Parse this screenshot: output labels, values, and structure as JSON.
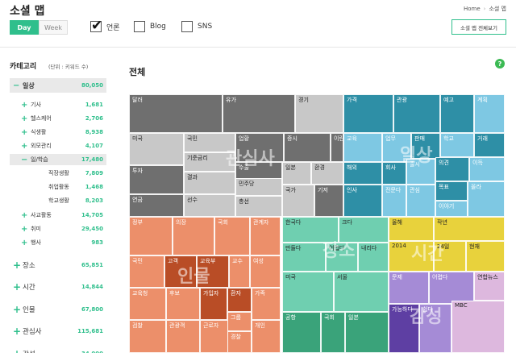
{
  "header": {
    "title": "소셜 맵",
    "breadcrumb": [
      "Home",
      "소셜 맵"
    ],
    "range_tabs": [
      "Day",
      "Week"
    ],
    "sources": [
      {
        "label": "언론",
        "checked": true
      },
      {
        "label": "Blog",
        "checked": false
      },
      {
        "label": "SNS",
        "checked": false
      }
    ],
    "view_all_label": "소셜 맵 전체보기"
  },
  "sidebar": {
    "title": "카테고리",
    "unit": "(단위 : 키워드 수)",
    "rows": [
      {
        "sign": "−",
        "label": "일상",
        "value": "80,050",
        "level": 1,
        "selected": true
      },
      {
        "sign": "+",
        "label": "기사",
        "value": "1,681",
        "level": 2
      },
      {
        "sign": "+",
        "label": "헬스케어",
        "value": "2,706",
        "level": 2
      },
      {
        "sign": "+",
        "label": "식생활",
        "value": "8,938",
        "level": 2
      },
      {
        "sign": "+",
        "label": "외모관리",
        "value": "4,107",
        "level": 2
      },
      {
        "sign": "−",
        "label": "일/학습",
        "value": "17,480",
        "level": 2,
        "selected": true
      },
      {
        "sign": "",
        "label": "직장생활",
        "value": "7,809",
        "level": 3
      },
      {
        "sign": "",
        "label": "취업활동",
        "value": "1,468",
        "level": 3
      },
      {
        "sign": "",
        "label": "학교생활",
        "value": "8,203",
        "level": 3
      },
      {
        "sign": "+",
        "label": "사교활동",
        "value": "14,705",
        "level": 2
      },
      {
        "sign": "+",
        "label": "취미",
        "value": "29,450",
        "level": 2
      },
      {
        "sign": "+",
        "label": "행사",
        "value": "983",
        "level": 2
      },
      {
        "sign": "+",
        "label": "장소",
        "value": "65,851",
        "level": 1
      },
      {
        "sign": "+",
        "label": "시간",
        "value": "14,844",
        "level": 1
      },
      {
        "sign": "+",
        "label": "인물",
        "value": "67,800",
        "level": 1
      },
      {
        "sign": "+",
        "label": "관심사",
        "value": "115,681",
        "level": 1
      },
      {
        "sign": "+",
        "label": "감성",
        "value": "34,000",
        "level": 1
      }
    ]
  },
  "main": {
    "title": "전체",
    "help_icon": "question-icon"
  },
  "treemap": {
    "group_labels": [
      "관심사",
      "일상",
      "인물",
      "장소",
      "시간",
      "감성"
    ],
    "palette": {
      "gray": "#6f6f6f",
      "silver": "#c8c8c8",
      "teal": "#2e8fa6",
      "sky": "#7ec8e3",
      "salmon": "#ec8f6a",
      "rust": "#b94d26",
      "mint": "#6fcfb0",
      "green": "#3aa37a",
      "yellow": "#e8d23c",
      "purple": "#a58bd6",
      "violet": "#5e3fa3",
      "pink": "#ddb8de"
    },
    "cells": [
      {
        "label": "달러",
        "c": "gray"
      },
      {
        "label": "유가",
        "c": "gray"
      },
      {
        "label": "경기",
        "c": "silver"
      },
      {
        "label": "미국",
        "c": "silver"
      },
      {
        "label": "국민",
        "c": "silver"
      },
      {
        "label": "기준금리",
        "c": "silver"
      },
      {
        "label": "업황",
        "c": "gray"
      },
      {
        "label": "증시",
        "c": "gray"
      },
      {
        "label": "이란",
        "c": "gray"
      },
      {
        "label": "투자",
        "c": "gray"
      },
      {
        "label": "결과",
        "c": "silver"
      },
      {
        "label": "수출",
        "c": "gray"
      },
      {
        "label": "일본",
        "c": "silver"
      },
      {
        "label": "환경",
        "c": "silver"
      },
      {
        "label": "민주당",
        "c": "silver"
      },
      {
        "label": "연금",
        "c": "gray"
      },
      {
        "label": "선수",
        "c": "silver"
      },
      {
        "label": "총선",
        "c": "silver"
      },
      {
        "label": "국가",
        "c": "silver"
      },
      {
        "label": "기저",
        "c": "gray"
      },
      {
        "label": "가격",
        "c": "teal"
      },
      {
        "label": "관광",
        "c": "teal"
      },
      {
        "label": "예고",
        "c": "teal"
      },
      {
        "label": "계획",
        "c": "sky"
      },
      {
        "label": "교육",
        "c": "sky"
      },
      {
        "label": "업무",
        "c": "sky"
      },
      {
        "label": "판매",
        "c": "teal"
      },
      {
        "label": "학교",
        "c": "sky"
      },
      {
        "label": "거래",
        "c": "teal"
      },
      {
        "label": "해외",
        "c": "teal"
      },
      {
        "label": "회사",
        "c": "teal"
      },
      {
        "label": "출시",
        "c": "sky"
      },
      {
        "label": "의견",
        "c": "teal"
      },
      {
        "label": "이득",
        "c": "sky"
      },
      {
        "label": "인사",
        "c": "teal"
      },
      {
        "label": "전문다",
        "c": "sky"
      },
      {
        "label": "관심",
        "c": "sky"
      },
      {
        "label": "목표",
        "c": "teal"
      },
      {
        "label": "이야기",
        "c": "sky"
      },
      {
        "label": "올라",
        "c": "sky"
      },
      {
        "label": "정부",
        "c": "salmon"
      },
      {
        "label": "의장",
        "c": "salmon"
      },
      {
        "label": "국회",
        "c": "salmon"
      },
      {
        "label": "관계자",
        "c": "salmon"
      },
      {
        "label": "국민",
        "c": "salmon"
      },
      {
        "label": "고객",
        "c": "rust"
      },
      {
        "label": "교육부",
        "c": "rust"
      },
      {
        "label": "교수",
        "c": "salmon"
      },
      {
        "label": "여성",
        "c": "salmon"
      },
      {
        "label": "교육청",
        "c": "salmon"
      },
      {
        "label": "후보",
        "c": "salmon"
      },
      {
        "label": "가입자",
        "c": "rust"
      },
      {
        "label": "환자",
        "c": "rust"
      },
      {
        "label": "가족",
        "c": "salmon"
      },
      {
        "label": "검찰",
        "c": "salmon"
      },
      {
        "label": "관광객",
        "c": "salmon"
      },
      {
        "label": "근로자",
        "c": "salmon"
      },
      {
        "label": "그룹",
        "c": "salmon"
      },
      {
        "label": "개인",
        "c": "salmon"
      },
      {
        "label": "경찰",
        "c": "salmon"
      },
      {
        "label": "한국다",
        "c": "mint"
      },
      {
        "label": "크다",
        "c": "mint"
      },
      {
        "label": "만들다",
        "c": "mint"
      },
      {
        "label": "어렵다",
        "c": "mint"
      },
      {
        "label": "내리다",
        "c": "mint"
      },
      {
        "label": "미국",
        "c": "mint"
      },
      {
        "label": "서울",
        "c": "mint"
      },
      {
        "label": "공항",
        "c": "green"
      },
      {
        "label": "국회",
        "c": "green"
      },
      {
        "label": "일본",
        "c": "green"
      },
      {
        "label": "올해",
        "c": "yellow"
      },
      {
        "label": "작년",
        "c": "yellow"
      },
      {
        "label": "2014",
        "c": "yellow"
      },
      {
        "label": "24일",
        "c": "yellow"
      },
      {
        "label": "현재",
        "c": "yellow"
      },
      {
        "label": "문제",
        "c": "purple"
      },
      {
        "label": "어렵다",
        "c": "purple"
      },
      {
        "label": "연합뉴스",
        "c": "pink"
      },
      {
        "label": "가능하다",
        "c": "violet"
      },
      {
        "label": "쉽다",
        "c": "purple"
      },
      {
        "label": "MBC",
        "c": "pink"
      }
    ]
  }
}
